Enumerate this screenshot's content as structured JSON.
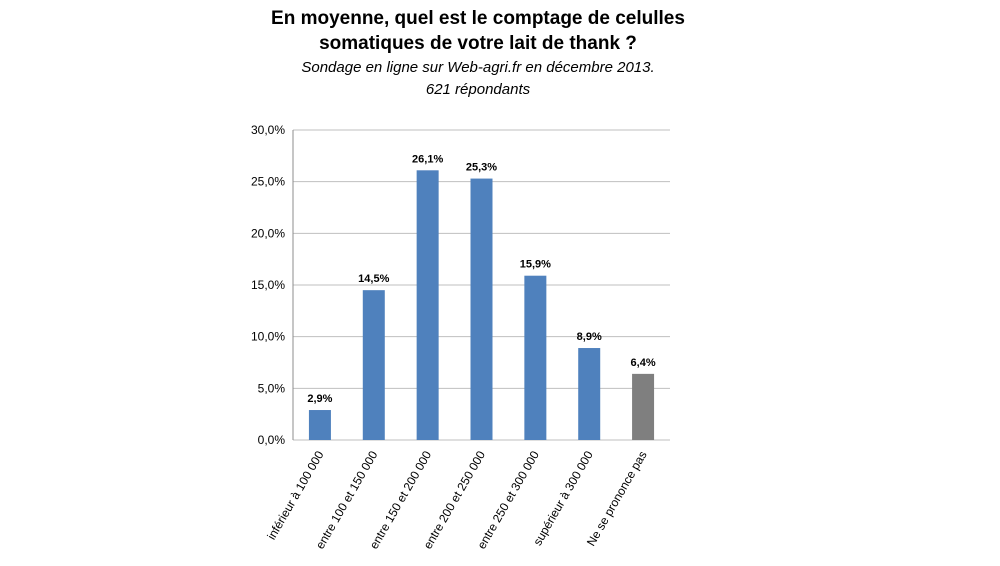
{
  "chart_data": {
    "type": "bar",
    "title": [
      "En moyenne, quel est le comptage de celulles",
      "somatiques de votre lait de thank ?"
    ],
    "subtitle": [
      "Sondage  en ligne sur Web-agri.fr  en décembre 2013.",
      "621 répondants"
    ],
    "categories": [
      "inférieur à 100 000",
      "entre 100 et 150 000",
      "entre 150 et 200 000",
      "entre 200 et 250 000",
      "entre 250 et 300 000",
      "supérieur à 300 000",
      "Ne se prononce pas"
    ],
    "values": [
      2.9,
      14.5,
      26.1,
      25.3,
      15.9,
      8.9,
      6.4
    ],
    "value_labels": [
      "2,9%",
      "14,5%",
      "26,1%",
      "25,3%",
      "15,9%",
      "8,9%",
      "6,4%"
    ],
    "colors": [
      "#4f81bd",
      "#4f81bd",
      "#4f81bd",
      "#4f81bd",
      "#4f81bd",
      "#4f81bd",
      "#7f7f7f"
    ],
    "ylim": [
      0,
      30
    ],
    "yticks": [
      {
        "value": 0,
        "label": "0,0%"
      },
      {
        "value": 5,
        "label": "5,0%"
      },
      {
        "value": 10,
        "label": "10,0%"
      },
      {
        "value": 15,
        "label": "15,0%"
      },
      {
        "value": 20,
        "label": "20,0%"
      },
      {
        "value": 25,
        "label": "25,0%"
      },
      {
        "value": 30,
        "label": "30,0%"
      }
    ],
    "grid": true
  }
}
